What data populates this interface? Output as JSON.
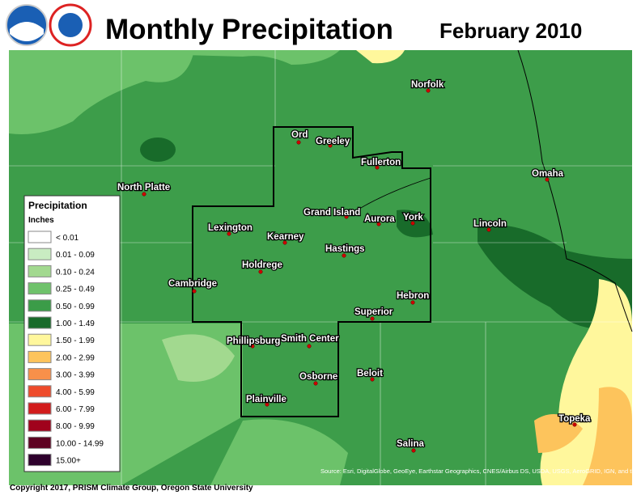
{
  "header": {
    "title": "Monthly Precipitation",
    "date": "February 2010"
  },
  "legend": {
    "title": "Precipitation",
    "units": "Inches",
    "items": [
      {
        "label": "< 0.01",
        "color": "#ffffff"
      },
      {
        "label": "0.01 - 0.09",
        "color": "#c9ecc2"
      },
      {
        "label": "0.10 - 0.24",
        "color": "#a2d98f"
      },
      {
        "label": "0.25 - 0.49",
        "color": "#6fc26b"
      },
      {
        "label": "0.50 - 0.99",
        "color": "#3b9c48"
      },
      {
        "label": "1.00 - 1.49",
        "color": "#186b2a"
      },
      {
        "label": "1.50 - 1.99",
        "color": "#fff79c"
      },
      {
        "label": "2.00 - 2.99",
        "color": "#fdc45c"
      },
      {
        "label": "3.00 - 3.99",
        "color": "#f8904a"
      },
      {
        "label": "4.00 - 5.99",
        "color": "#ee4b2b"
      },
      {
        "label": "6.00 - 7.99",
        "color": "#d21c1c"
      },
      {
        "label": "8.00 - 9.99",
        "color": "#a0021c"
      },
      {
        "label": "10.00 - 14.99",
        "color": "#5e0222"
      },
      {
        "label": "15.00+",
        "color": "#2e012c"
      }
    ]
  },
  "cities": [
    "North Platte",
    "Ord",
    "Greeley",
    "Norfolk",
    "Fullerton",
    "Omaha",
    "Grand Island",
    "Aurora",
    "York",
    "Lincoln",
    "Lexington",
    "Kearney",
    "Hastings",
    "Holdrege",
    "Cambridge",
    "Hebron",
    "Superior",
    "Phillipsburg",
    "Smith Center",
    "Beloit",
    "Osborne",
    "Plainville",
    "Topeka",
    "Salina"
  ],
  "footer": {
    "copyright": "Copyright 2017, PRISM Climate Group, Oregon State University",
    "source": "Source: Esri, DigitalGlobe, GeoEye, Earthstar Geographics, CNES/Airbus DS, USDA, USGS, AeroGRID, IGN, and the GIS User Community"
  }
}
